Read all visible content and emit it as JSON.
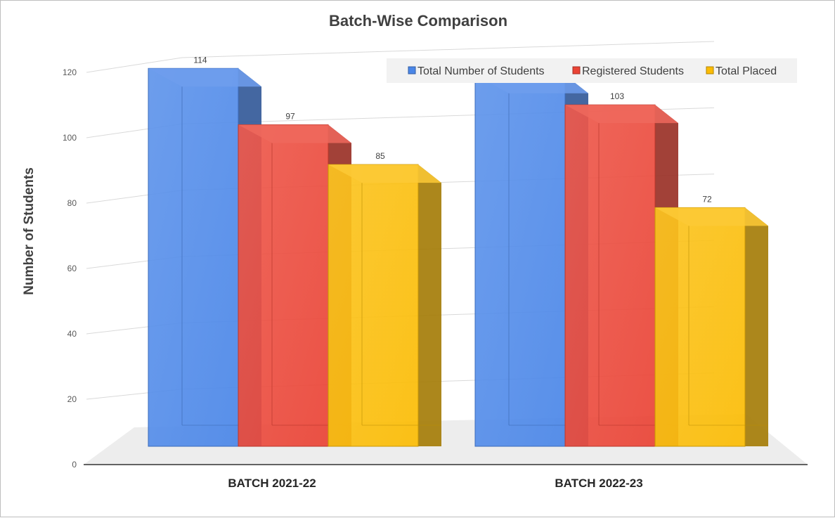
{
  "chart_data": {
    "type": "bar",
    "title": "Batch-Wise Comparison",
    "ylabel": "Number of Students",
    "xlabel": "",
    "categories": [
      "BATCH 2021-22",
      "BATCH 2022-23"
    ],
    "series": [
      {
        "name": "Total Number of Students",
        "values": [
          114,
          112
        ],
        "color": "#4a86e8"
      },
      {
        "name": "Registered Students",
        "values": [
          97,
          103
        ],
        "color": "#ea4335"
      },
      {
        "name": "Total Placed",
        "values": [
          85,
          72
        ],
        "color": "#fbbc04"
      }
    ],
    "ylim": [
      0,
      120
    ],
    "yticks": [
      0,
      20,
      40,
      60,
      80,
      100,
      120
    ],
    "grid": true,
    "legend": "top-right",
    "style": "3d-column"
  }
}
